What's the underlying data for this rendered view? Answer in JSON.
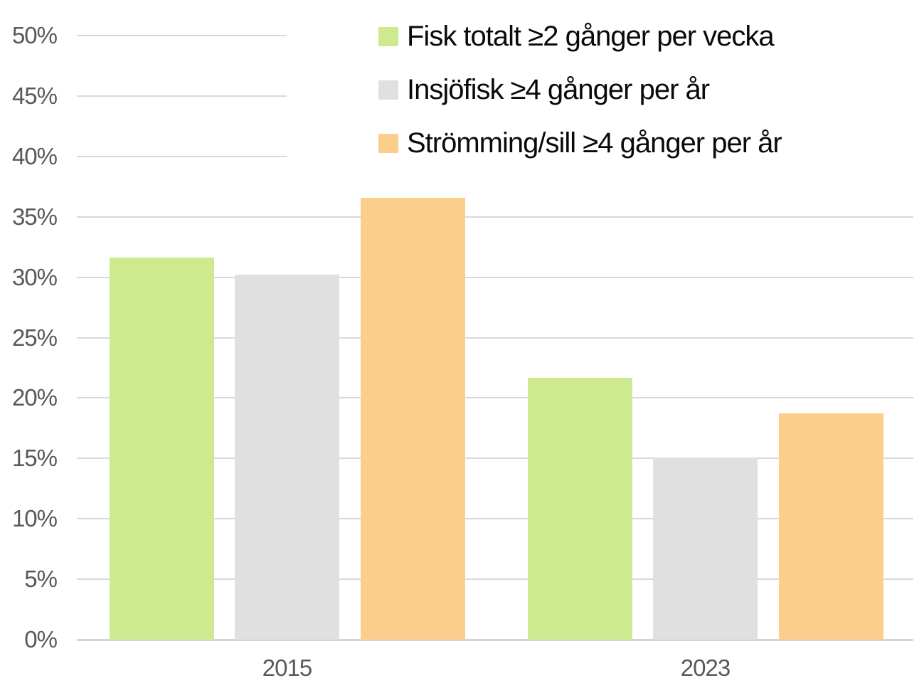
{
  "chart_data": {
    "type": "bar",
    "title": "",
    "xlabel": "",
    "ylabel": "",
    "categories": [
      "2015",
      "2023"
    ],
    "series": [
      {
        "name": "Fisk totalt ≥2 gånger per vecka",
        "color": "#cdeb8e",
        "values": [
          31.6,
          21.7
        ]
      },
      {
        "name": "Insjöfisk ≥4 gånger per år",
        "color": "#e0e0e0",
        "values": [
          30.2,
          15.1
        ]
      },
      {
        "name": "Strömming/sill ≥4 gånger per år",
        "color": "#fbce8b",
        "values": [
          36.6,
          18.7
        ]
      }
    ],
    "ylim": [
      0,
      50
    ],
    "ytick_step": 5,
    "ytick_labels": [
      "0%",
      "5%",
      "10%",
      "15%",
      "20%",
      "25%",
      "30%",
      "35%",
      "40%",
      "45%",
      "50%"
    ],
    "grid": true,
    "legend_position": "top-right"
  },
  "colors": {
    "background": "#ffffff",
    "gridline": "#d9d9d9",
    "axis_line": "#d4d4d4",
    "axis_text": "#595959",
    "legend_text": "#0a0a0a"
  }
}
